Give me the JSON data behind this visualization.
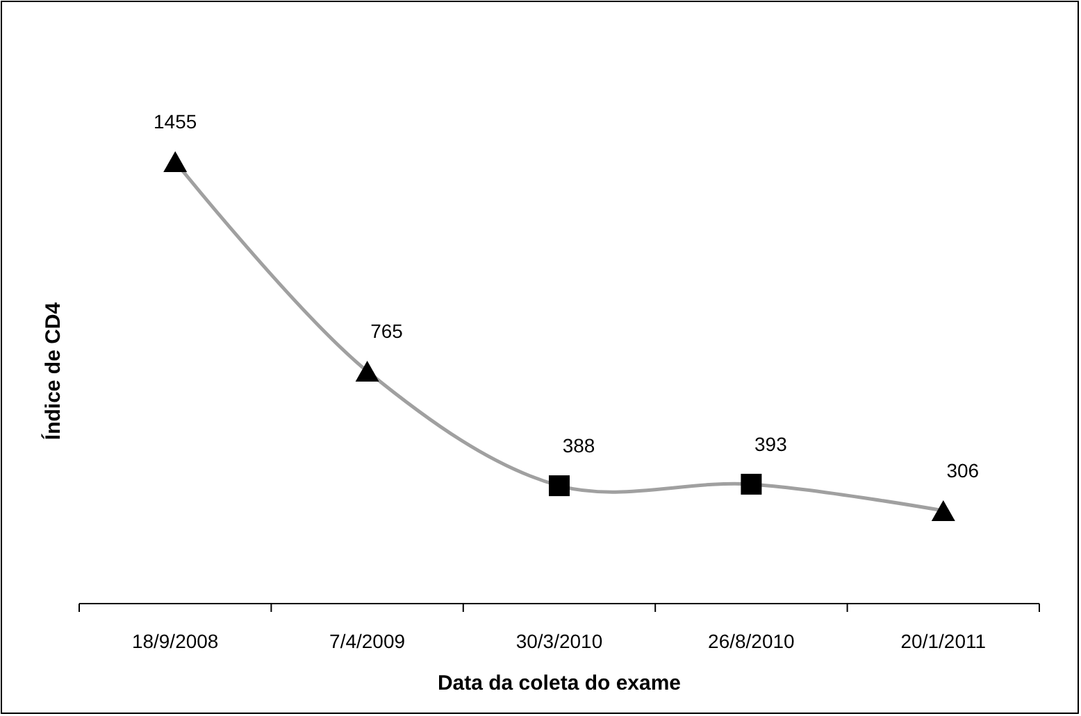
{
  "chart_data": {
    "type": "line",
    "xlabel": "Data da coleta do exame",
    "ylabel": "Índice de CD4",
    "categories": [
      "18/9/2008",
      "7/4/2009",
      "30/3/2010",
      "26/8/2010",
      "20/1/2011"
    ],
    "series": [
      {
        "color": "#a0a0a0",
        "marker": "none",
        "values": [
          1455,
          765,
          388,
          393,
          306
        ],
        "value_labels": [
          "1455",
          "765",
          "388",
          "393",
          "306"
        ]
      },
      {
        "type": "scatter",
        "color": "#000000",
        "marker": "triangle",
        "values": [
          1455,
          765,
          null,
          null,
          306
        ]
      },
      {
        "type": "scatter",
        "color": "#000000",
        "marker": "square",
        "values": [
          null,
          null,
          388,
          393,
          null
        ]
      }
    ]
  }
}
